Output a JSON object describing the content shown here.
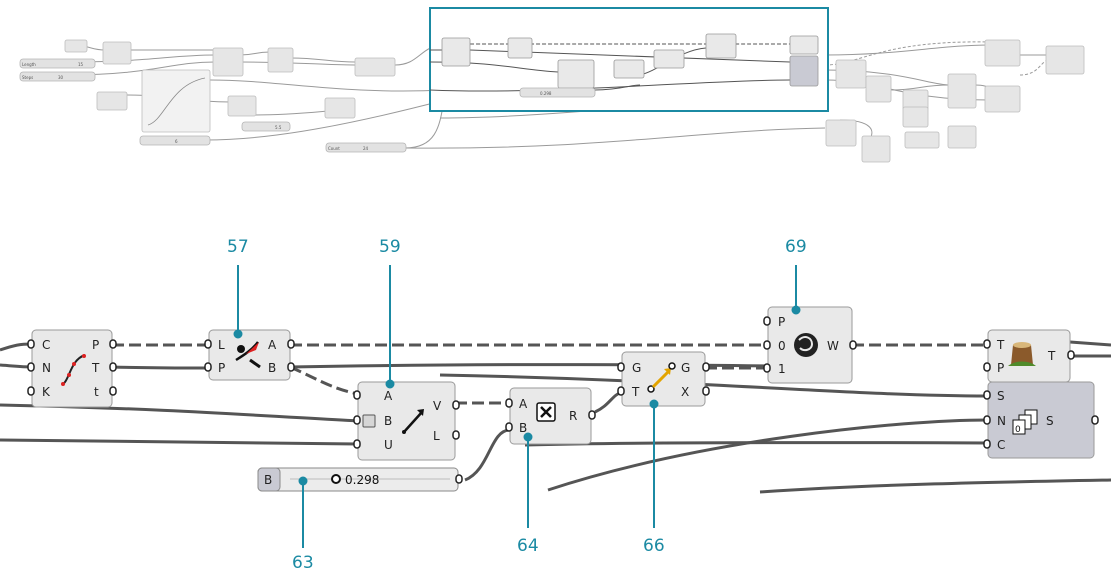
{
  "overview": {
    "params": {
      "length_label": "Length",
      "length_value": "15",
      "steps_label": "Steps",
      "steps_value": "30",
      "count_label": "Count",
      "count_value": "24",
      "mini_slider_value": "0.298",
      "small_value_a": "5.5",
      "small_value_b": "6"
    }
  },
  "detail": {
    "callouts": [
      "57",
      "59",
      "63",
      "64",
      "66",
      "69"
    ],
    "curve_divide": {
      "inputs": [
        "C",
        "N",
        "K"
      ],
      "outputs": [
        "P",
        "T",
        "t"
      ]
    },
    "closest_point": {
      "inputs": [
        "L",
        "P"
      ],
      "outputs": [
        "A",
        "B"
      ]
    },
    "vector_2pt": {
      "inputs": [
        "A",
        "B",
        "U"
      ],
      "outputs": [
        "V",
        "L"
      ]
    },
    "multiply": {
      "inputs": [
        "A",
        "B"
      ],
      "outputs": [
        "R"
      ]
    },
    "move": {
      "inputs": [
        "G",
        "T"
      ],
      "outputs": [
        "G",
        "X"
      ]
    },
    "weave": {
      "inputs": [
        "P",
        "0",
        "1"
      ],
      "outputs": [
        "W"
      ]
    },
    "flatten": {
      "inputs": [
        "T",
        "P"
      ],
      "outputs": [
        "T"
      ]
    },
    "series": {
      "inputs": [
        "S",
        "N",
        "C"
      ],
      "outputs": [
        "S"
      ]
    },
    "slider": {
      "label": "B",
      "value": "0.298"
    }
  },
  "colors": {
    "accent": "#1b8aa3",
    "component_fill": "#e9e9e9",
    "component_dark": "#c9cad3",
    "wire": "#555555"
  }
}
